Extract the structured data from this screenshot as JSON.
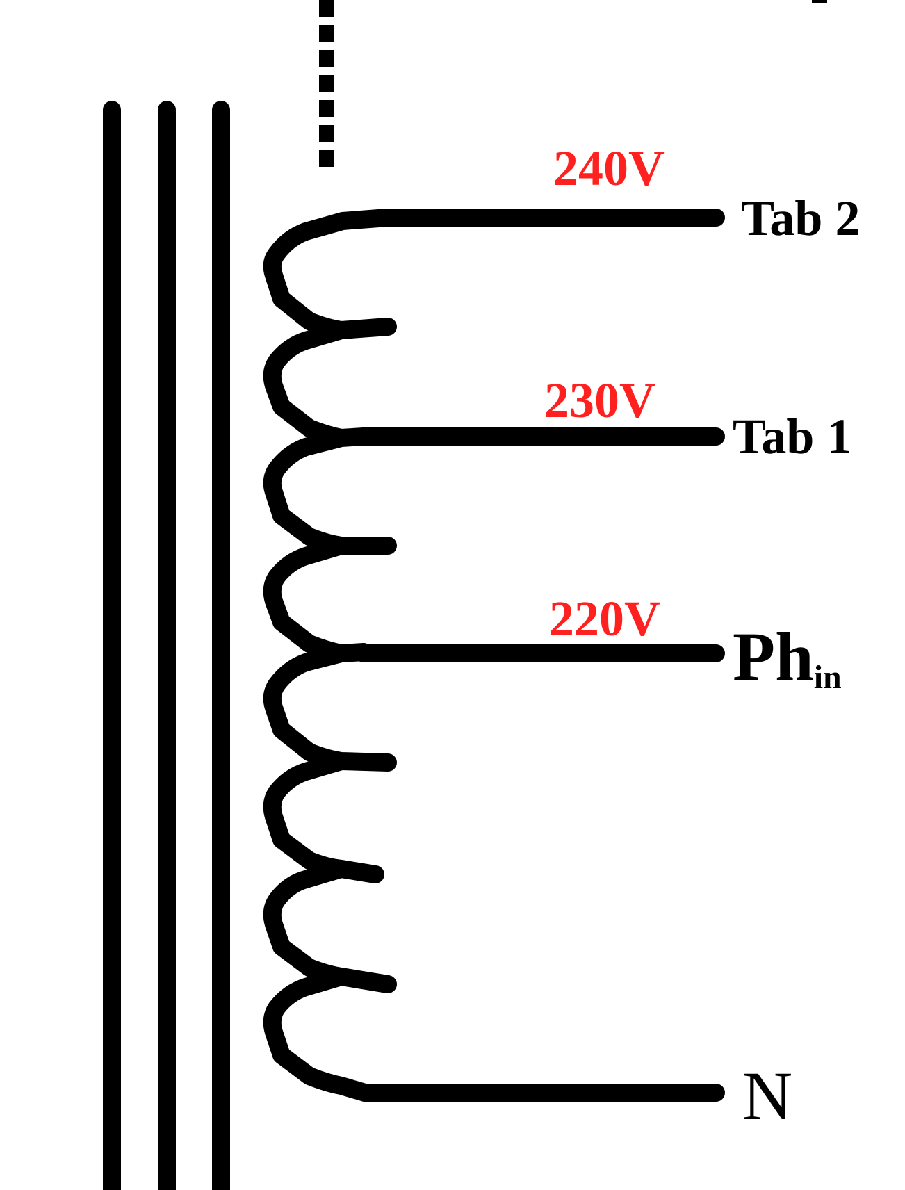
{
  "colors": {
    "wire": "#000000",
    "voltage_label": "#ff2020",
    "background": "#ffffff"
  },
  "voltages": {
    "v240": "240V",
    "v230": "230V",
    "v220": "220V"
  },
  "terminals": {
    "tab2": "Tab 2",
    "tab1": "Tab 1",
    "phase_main": "Ph",
    "phase_sub": "in",
    "neutral": "N"
  }
}
